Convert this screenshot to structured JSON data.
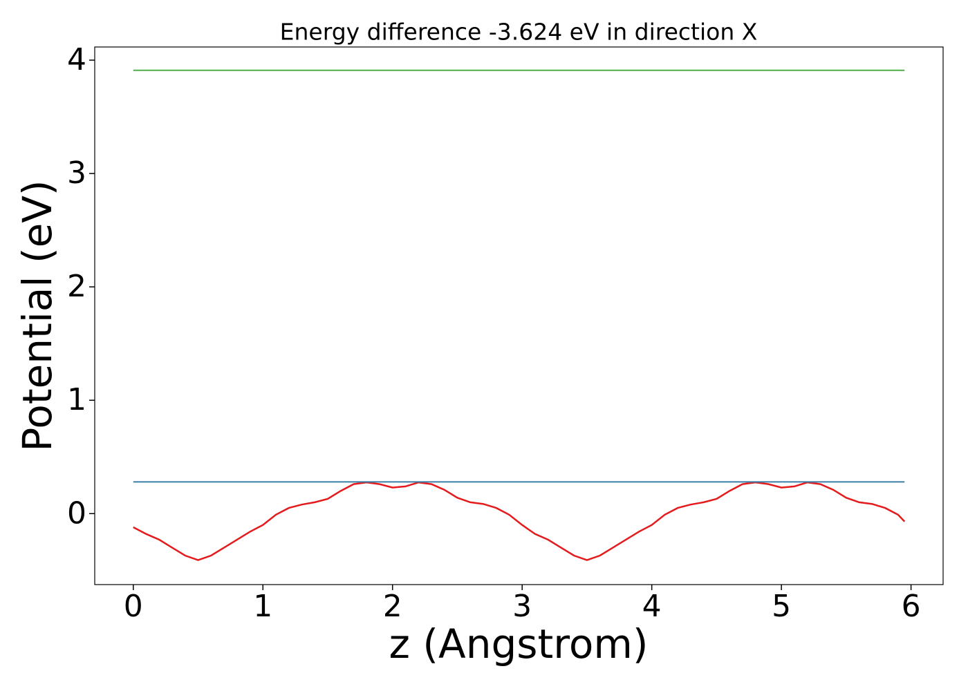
{
  "chart_data": {
    "type": "line",
    "title": "Energy difference -3.624 eV in direction X",
    "xlabel": "z (Angstrom)",
    "ylabel": "Potential (eV)",
    "xlim": [
      -0.2975,
      6.2475
    ],
    "xticks": [
      0,
      1,
      2,
      3,
      4,
      5,
      6
    ],
    "ylim": [
      -0.626,
      4.116
    ],
    "yticks": [
      0,
      1,
      2,
      3,
      4
    ],
    "series": [
      {
        "color": "#e41a1c",
        "x": [
          0,
          0.1,
          0.2,
          0.3,
          0.4,
          0.5,
          0.6,
          0.7,
          0.8,
          0.9,
          1.0,
          1.1,
          1.2,
          1.3,
          1.4,
          1.5,
          1.6,
          1.7,
          1.8,
          1.9,
          2.0,
          2.1,
          2.2,
          2.3,
          2.4,
          2.5,
          2.6,
          2.7,
          2.8,
          2.9,
          3.0,
          3.1,
          3.2,
          3.3,
          3.4,
          3.5,
          3.6,
          3.7,
          3.8,
          3.9,
          4.0,
          4.1,
          4.2,
          4.3,
          4.4,
          4.5,
          4.6,
          4.7,
          4.8,
          4.9,
          5.0,
          5.1,
          5.2,
          5.3,
          5.4,
          5.5,
          5.6,
          5.7,
          5.8,
          5.9,
          5.95
        ],
        "values": [
          -0.12,
          -0.18,
          -0.23,
          -0.3,
          -0.37,
          -0.41,
          -0.37,
          -0.3,
          -0.23,
          -0.16,
          -0.1,
          -0.01,
          0.05,
          0.08,
          0.1,
          0.13,
          0.2,
          0.26,
          0.275,
          0.26,
          0.23,
          0.24,
          0.275,
          0.26,
          0.21,
          0.14,
          0.1,
          0.085,
          0.05,
          -0.01,
          -0.1,
          -0.18,
          -0.23,
          -0.3,
          -0.37,
          -0.41,
          -0.37,
          -0.3,
          -0.23,
          -0.16,
          -0.1,
          -0.01,
          0.05,
          0.08,
          0.1,
          0.13,
          0.2,
          0.26,
          0.275,
          0.26,
          0.23,
          0.24,
          0.275,
          0.26,
          0.21,
          0.14,
          0.1,
          0.085,
          0.05,
          -0.01,
          -0.07
        ]
      },
      {
        "color": "#3a7ea8",
        "x": [
          0,
          5.95
        ],
        "values": [
          0.28,
          0.28
        ]
      },
      {
        "color": "#4daf4a",
        "x": [
          0,
          5.95
        ],
        "values": [
          3.91,
          3.91
        ]
      }
    ]
  }
}
